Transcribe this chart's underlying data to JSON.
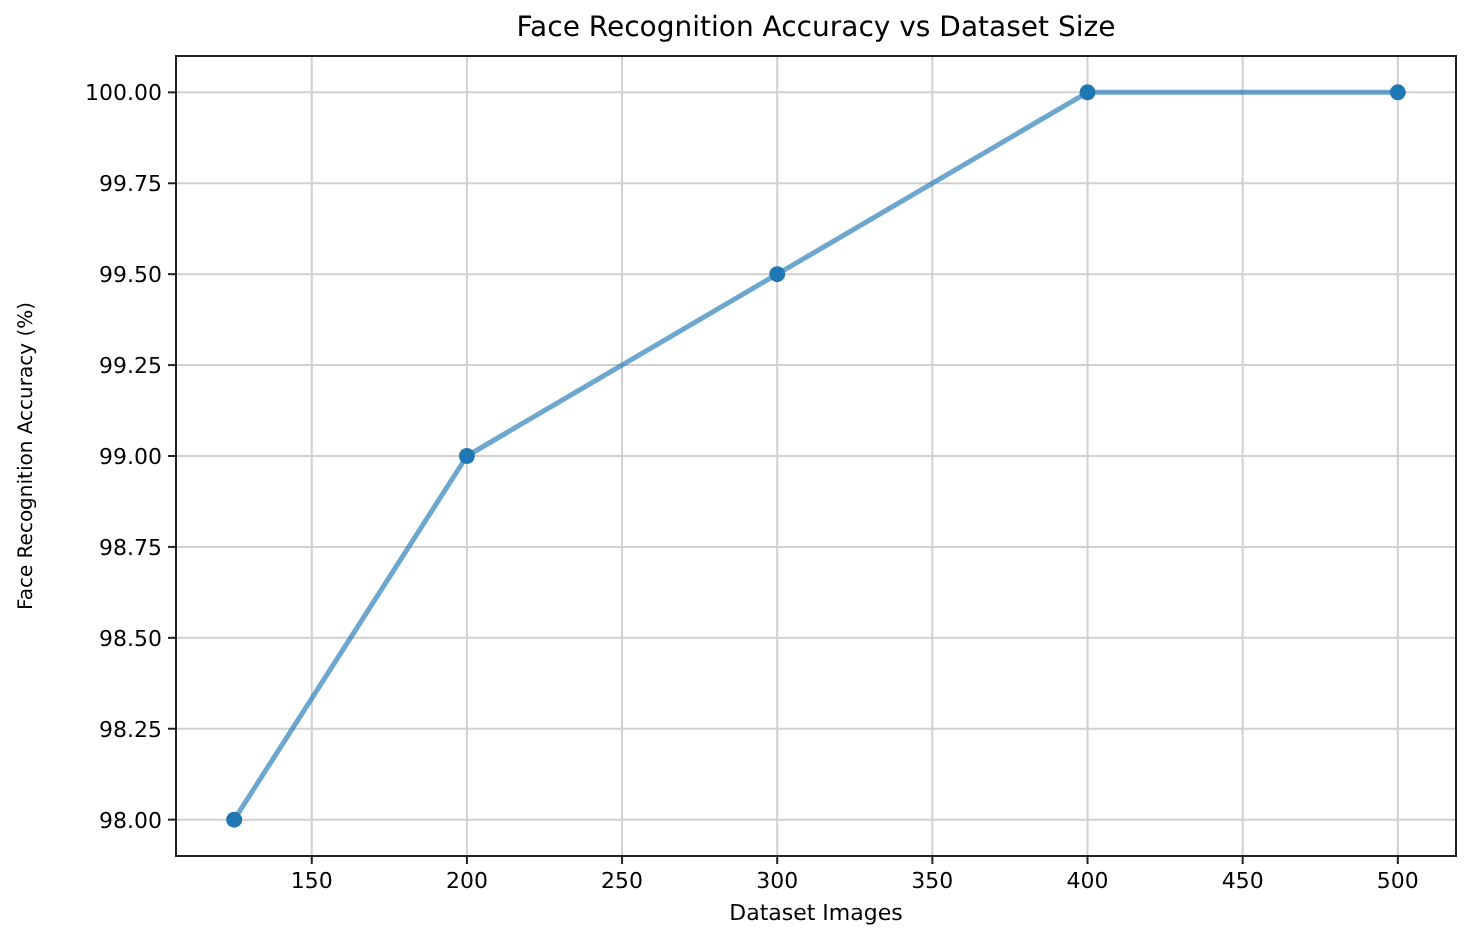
{
  "chart_data": {
    "type": "line",
    "title": "Face Recognition Accuracy vs Dataset Size",
    "xlabel": "Dataset Images",
    "ylabel": "Face Recognition Accuracy (%)",
    "x": [
      125,
      200,
      300,
      400,
      500
    ],
    "series": [
      {
        "color": "#1f77b4",
        "values": [
          98.0,
          99.0,
          99.5,
          100.0,
          100.0
        ]
      }
    ],
    "xlim": [
      106.25,
      518.75
    ],
    "xticks": [
      150,
      200,
      250,
      300,
      350,
      400,
      450,
      500
    ],
    "ylim": [
      97.9,
      100.1
    ],
    "yticks": [
      {
        "value": 98,
        "label": "98.00"
      },
      {
        "value": 98.25,
        "label": "98.25"
      },
      {
        "value": 98.5,
        "label": "98.50"
      },
      {
        "value": 98.75,
        "label": "98.75"
      },
      {
        "value": 99,
        "label": "99.00"
      },
      {
        "value": 99.25,
        "label": "99.25"
      },
      {
        "value": 99.5,
        "label": "99.50"
      },
      {
        "value": 99.75,
        "label": "99.75"
      },
      {
        "value": 100,
        "label": "100.00"
      }
    ],
    "grid": true,
    "marker": "circle",
    "line_style": "solid"
  }
}
